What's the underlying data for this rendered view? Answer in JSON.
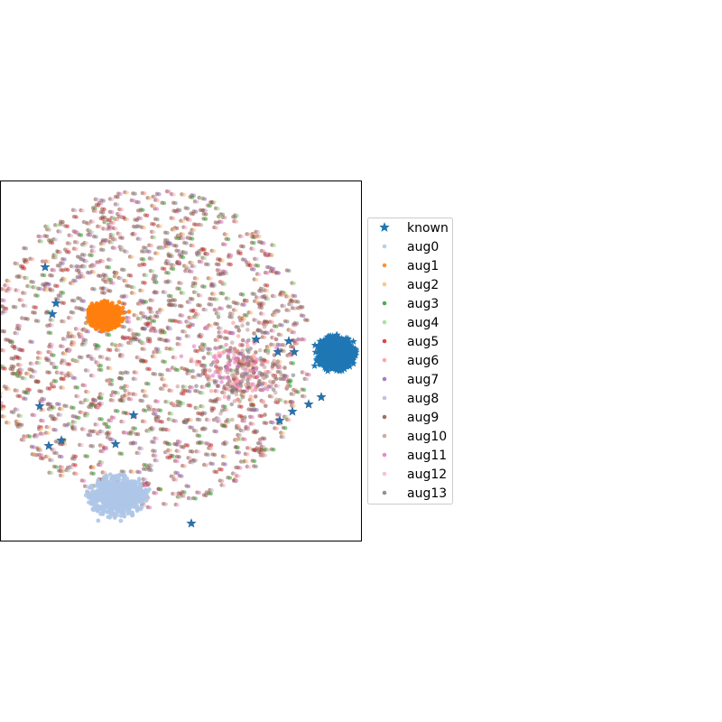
{
  "chart_data": {
    "type": "scatter",
    "title": "",
    "xlabel": "",
    "ylabel": "",
    "xticks": [],
    "yticks": [],
    "xlim": [
      -1.0,
      1.0
    ],
    "ylim": [
      -1.0,
      1.0
    ],
    "grid": false,
    "legend_position": "outside-right",
    "series": [
      {
        "name": "known",
        "color": "#1f77b4",
        "marker": "star",
        "clusters": [
          {
            "center": [
              0.86,
              0.04
            ],
            "spread": [
              0.11,
              0.1
            ],
            "share": "dense"
          }
        ],
        "points": [
          [
            -0.75,
            0.52
          ],
          [
            -0.69,
            0.32
          ],
          [
            -0.71,
            0.26
          ],
          [
            -0.78,
            -0.25
          ],
          [
            -0.73,
            -0.47
          ],
          [
            -0.66,
            -0.44
          ],
          [
            -0.36,
            -0.46
          ],
          [
            -0.26,
            -0.3
          ],
          [
            0.06,
            -0.9
          ],
          [
            0.42,
            0.12
          ],
          [
            0.6,
            0.11
          ],
          [
            0.54,
            0.05
          ],
          [
            0.63,
            0.05
          ],
          [
            0.55,
            -0.33
          ],
          [
            0.62,
            -0.28
          ],
          [
            0.71,
            -0.24
          ],
          [
            0.78,
            -0.2
          ]
        ]
      },
      {
        "name": "aug0",
        "color": "#aec7e8",
        "marker": "dot",
        "clusters": [
          {
            "center": [
              -0.35,
              -0.75
            ],
            "spread": [
              0.17,
              0.12
            ],
            "share": "dense"
          }
        ]
      },
      {
        "name": "aug1",
        "color": "#ff7f0e",
        "marker": "dot",
        "clusters": [
          {
            "center": [
              -0.42,
              0.25
            ],
            "spread": [
              0.1,
              0.08
            ],
            "share": "dense"
          }
        ]
      },
      {
        "name": "aug2",
        "color": "#ffbb78",
        "marker": "dot"
      },
      {
        "name": "aug3",
        "color": "#2ca02c",
        "marker": "dot"
      },
      {
        "name": "aug4",
        "color": "#98df8a",
        "marker": "dot"
      },
      {
        "name": "aug5",
        "color": "#d62728",
        "marker": "dot"
      },
      {
        "name": "aug6",
        "color": "#ff9896",
        "marker": "dot"
      },
      {
        "name": "aug7",
        "color": "#9467bd",
        "marker": "dot"
      },
      {
        "name": "aug8",
        "color": "#c5b0d5",
        "marker": "dot"
      },
      {
        "name": "aug9",
        "color": "#8c564b",
        "marker": "dot"
      },
      {
        "name": "aug10",
        "color": "#c49c94",
        "marker": "dot"
      },
      {
        "name": "aug11",
        "color": "#e377c2",
        "marker": "dot"
      },
      {
        "name": "aug12",
        "color": "#f7b6d2",
        "marker": "dot"
      },
      {
        "name": "aug13",
        "color": "#7f7f7f",
        "marker": "dot"
      }
    ],
    "background_cloud": {
      "center": [
        -0.17,
        0.07
      ],
      "radius": 0.9,
      "description_series": [
        "aug2",
        "aug3",
        "aug4",
        "aug5",
        "aug6",
        "aug7",
        "aug8",
        "aug9",
        "aug10",
        "aug11",
        "aug12",
        "aug13"
      ]
    }
  }
}
